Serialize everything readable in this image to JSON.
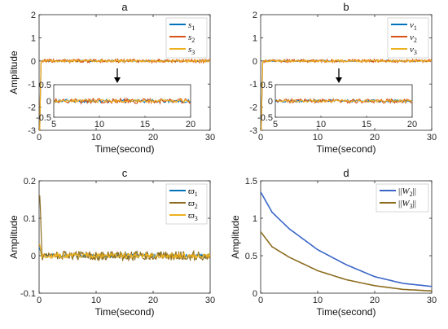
{
  "chart_data": [
    {
      "panel": "a",
      "type": "line",
      "title": "a",
      "xlabel": "Time(second)",
      "ylabel": "Amplitude",
      "xlim": [
        0,
        30
      ],
      "ylim": [
        -3,
        2
      ],
      "xticks": [
        "0",
        "10",
        "20",
        "30"
      ],
      "yticks": [
        "-3",
        "-2",
        "-1",
        "0",
        "1",
        "2"
      ],
      "legend_position": "top-right",
      "colors": [
        "#0072BD",
        "#D95319",
        "#EDB120"
      ],
      "series": [
        {
          "name": "s1",
          "legend_base": "s",
          "legend_sub": "1",
          "start": -3.0,
          "peak": -3.0,
          "settle": 0.3,
          "noise": 0.03
        },
        {
          "name": "s2",
          "legend_base": "s",
          "legend_sub": "2",
          "start": -3.0,
          "peak": -3.0,
          "settle": 0.3,
          "noise": 0.07
        },
        {
          "name": "s3",
          "legend_base": "s",
          "legend_sub": "3",
          "start": -3.0,
          "peak": -3.0,
          "settle": 0.3,
          "noise": 0.04
        }
      ],
      "inset": {
        "xlim": [
          5,
          20
        ],
        "ylim": [
          -0.5,
          0.5
        ],
        "xticks": [
          "5",
          "10",
          "15",
          "20"
        ],
        "yticks": [
          "-0.5",
          "0",
          "0.5"
        ],
        "noise": 0.06
      }
    },
    {
      "panel": "b",
      "type": "line",
      "title": "b",
      "xlabel": "Time(second)",
      "ylabel": "",
      "xlim": [
        0,
        30
      ],
      "ylim": [
        -3,
        2
      ],
      "xticks": [
        "0",
        "10",
        "20",
        "30"
      ],
      "yticks": [
        "-3",
        "-2",
        "-1",
        "0",
        "1",
        "2"
      ],
      "legend_position": "top-right",
      "colors": [
        "#0072BD",
        "#D95319",
        "#EDB120"
      ],
      "series": [
        {
          "name": "v1",
          "legend_base": "v",
          "legend_sub": "1",
          "start": -3.0,
          "peak": -3.0,
          "settle": 0.3,
          "noise": 0.03
        },
        {
          "name": "v2",
          "legend_base": "v",
          "legend_sub": "2",
          "start": -3.0,
          "peak": -3.0,
          "settle": 0.3,
          "noise": 0.06
        },
        {
          "name": "v3",
          "legend_base": "v",
          "legend_sub": "3",
          "start": -3.0,
          "peak": -3.0,
          "settle": 0.3,
          "noise": 0.04
        }
      ],
      "inset": {
        "xlim": [
          5,
          20
        ],
        "ylim": [
          -0.5,
          0.5
        ],
        "xticks": [
          "5",
          "10",
          "15",
          "20"
        ],
        "yticks": [
          "-0.5",
          "0",
          "0.5"
        ],
        "noise": 0.05
      }
    },
    {
      "panel": "c",
      "type": "line",
      "title": "c",
      "xlabel": "Time(second)",
      "ylabel": "Amplitude",
      "xlim": [
        0,
        30
      ],
      "ylim": [
        -0.1,
        0.2
      ],
      "xticks": [
        "0",
        "10",
        "20",
        "30"
      ],
      "yticks": [
        "-0.1",
        "0",
        "0.1",
        "0.2"
      ],
      "legend_position": "top-right",
      "colors": [
        "#0072BD",
        "#8C6D1F",
        "#EDB120"
      ],
      "series": [
        {
          "name": "ϖ1",
          "legend_base": "ϖ",
          "legend_sub": "1",
          "start": 0.0,
          "peak": 0.02,
          "settle": 0.4,
          "noise": 0.004
        },
        {
          "name": "ϖ2",
          "legend_base": "ϖ",
          "legend_sub": "2",
          "start": 0.0,
          "peak": 0.16,
          "settle": 0.5,
          "noise": 0.012
        },
        {
          "name": "ϖ3",
          "legend_base": "ϖ",
          "legend_sub": "3",
          "start": 0.0,
          "peak": 0.03,
          "settle": 0.4,
          "noise": 0.006
        }
      ]
    },
    {
      "panel": "d",
      "type": "line",
      "title": "d",
      "xlabel": "Time(second)",
      "ylabel": "Amplitude",
      "xlim": [
        0,
        30
      ],
      "ylim": [
        0,
        1.5
      ],
      "xticks": [
        "0",
        "10",
        "20",
        "30"
      ],
      "yticks": [
        "0",
        "0.5",
        "1",
        "1.5"
      ],
      "legend_position": "top-right",
      "colors": [
        "#3A66C8",
        "#8C6D1F"
      ],
      "series": [
        {
          "name": "||W2||",
          "legend_base": "W",
          "legend_sub": "2",
          "x": [
            0,
            2,
            5,
            10,
            15,
            20,
            25,
            30
          ],
          "y": [
            1.35,
            1.08,
            0.86,
            0.58,
            0.38,
            0.22,
            0.13,
            0.09
          ]
        },
        {
          "name": "||W3||",
          "legend_base": "W",
          "legend_sub": "3",
          "x": [
            0,
            2,
            5,
            10,
            15,
            20,
            25,
            30
          ],
          "y": [
            0.82,
            0.62,
            0.48,
            0.3,
            0.18,
            0.1,
            0.05,
            0.03
          ]
        }
      ]
    }
  ]
}
